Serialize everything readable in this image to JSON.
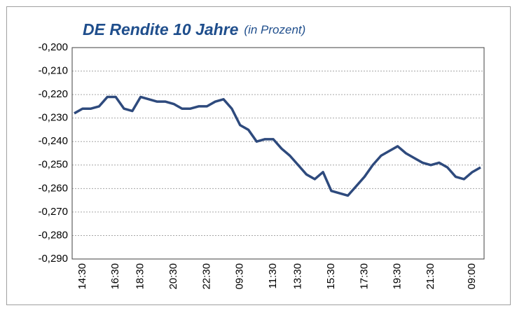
{
  "chart_data": {
    "type": "line",
    "title": "DE Rendite 10 Jahre",
    "subtitle": "(in Prozent)",
    "categories": [
      null,
      "14:30",
      null,
      null,
      null,
      "16:30",
      null,
      null,
      "18:30",
      null,
      null,
      null,
      "20:30",
      null,
      null,
      null,
      "22:30",
      null,
      null,
      null,
      "09:30",
      null,
      null,
      null,
      "11:30",
      null,
      null,
      "13:30",
      null,
      null,
      null,
      "15:30",
      null,
      null,
      null,
      "17:30",
      null,
      null,
      null,
      "19:30",
      null,
      null,
      null,
      "21:30",
      null,
      null,
      null,
      null,
      "09:00",
      null
    ],
    "series": [
      {
        "name": "DE Rendite 10 Jahre",
        "color": "#2e4a7d",
        "values": [
          -0.228,
          -0.226,
          -0.226,
          -0.225,
          -0.221,
          -0.221,
          -0.226,
          -0.227,
          -0.221,
          -0.222,
          -0.223,
          -0.223,
          -0.224,
          -0.226,
          -0.226,
          -0.225,
          -0.225,
          -0.223,
          -0.222,
          -0.226,
          -0.233,
          -0.235,
          -0.24,
          -0.239,
          -0.239,
          -0.243,
          -0.246,
          -0.25,
          -0.254,
          -0.256,
          -0.253,
          -0.261,
          -0.262,
          -0.263,
          -0.259,
          -0.255,
          -0.25,
          -0.246,
          -0.244,
          -0.242,
          -0.245,
          -0.247,
          -0.249,
          -0.25,
          -0.249,
          -0.251,
          -0.255,
          -0.256,
          -0.253,
          -0.251
        ]
      }
    ],
    "ylim": [
      -0.29,
      -0.2
    ],
    "yticks": [
      {
        "value": -0.2,
        "label": "-0,200"
      },
      {
        "value": -0.21,
        "label": "-0,210"
      },
      {
        "value": -0.22,
        "label": "-0,220"
      },
      {
        "value": -0.23,
        "label": "-0,230"
      },
      {
        "value": -0.24,
        "label": "-0,240"
      },
      {
        "value": -0.25,
        "label": "-0,250"
      },
      {
        "value": -0.26,
        "label": "-0,260"
      },
      {
        "value": -0.27,
        "label": "-0,270"
      },
      {
        "value": -0.28,
        "label": "-0,280"
      },
      {
        "value": -0.29,
        "label": "-0,290"
      }
    ],
    "grid": true
  }
}
